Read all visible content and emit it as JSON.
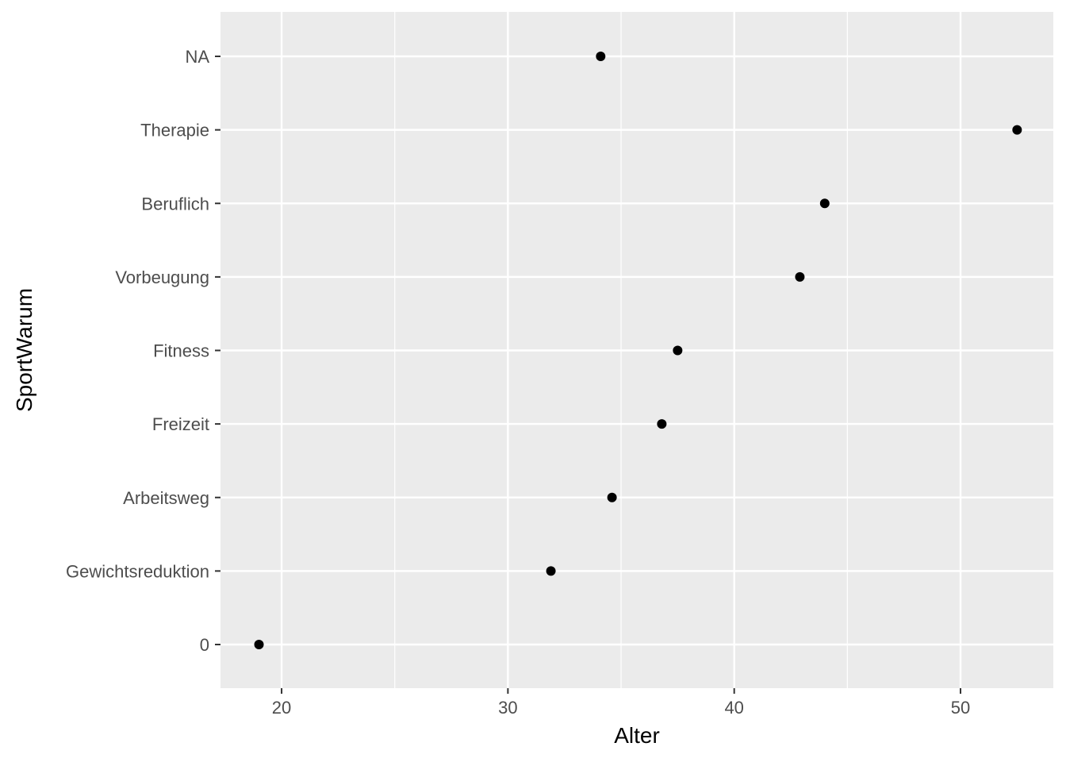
{
  "chart_data": {
    "type": "scatter",
    "xlabel": "Alter",
    "ylabel": "SportWarum",
    "categories": [
      "0",
      "Gewichtsreduktion",
      "Arbeitsweg",
      "Freizeit",
      "Fitness",
      "Vorbeugung",
      "Beruflich",
      "Therapie",
      "NA"
    ],
    "points": [
      {
        "category": "0",
        "x": 19.0
      },
      {
        "category": "Gewichtsreduktion",
        "x": 31.9
      },
      {
        "category": "Arbeitsweg",
        "x": 34.6
      },
      {
        "category": "Freizeit",
        "x": 36.8
      },
      {
        "category": "Fitness",
        "x": 37.5
      },
      {
        "category": "Vorbeugung",
        "x": 42.9
      },
      {
        "category": "Beruflich",
        "x": 44.0
      },
      {
        "category": "Therapie",
        "x": 52.5
      },
      {
        "category": "NA",
        "x": 34.1
      }
    ],
    "x_ticks": [
      20,
      30,
      40,
      50
    ],
    "x_tick_labels": [
      "20",
      "30",
      "40",
      "50"
    ],
    "xlim": [
      17.3,
      54.1
    ],
    "grid": true,
    "colors": {
      "panel_background": "#EBEBEB",
      "grid_line": "#FFFFFF",
      "point": "#000000",
      "tick_label": "#4D4D4D",
      "tick_mark": "#333333",
      "axis_title": "#000000"
    }
  }
}
